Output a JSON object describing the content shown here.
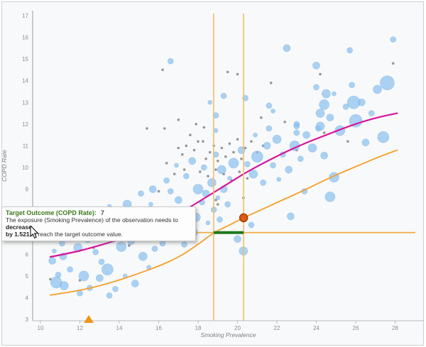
{
  "tooltip": {
    "title": "Target Outcome (COPD Rate):",
    "value": "7",
    "line2_normal": "The exposure (Smoking Prevalence) of the observation needs to ",
    "line2_bold": "decrease",
    "line3_bold": "by 1.521",
    "line3_normal": " to reach the target outcome value.",
    "title_color": "#3d7a1d"
  },
  "chart_data": {
    "type": "scatter",
    "title": "",
    "xlabel": "Smoking Prevalence",
    "ylabel": "COPD Rate",
    "x_ticks": [
      10,
      12,
      14,
      16,
      18,
      20,
      22,
      24,
      26,
      28
    ],
    "y_ticks": [
      3,
      4,
      5,
      6,
      7,
      8,
      9,
      10,
      11,
      12,
      13,
      14,
      15,
      16,
      17
    ],
    "xlim": [
      9.6,
      29.5
    ],
    "ylim": [
      2.95,
      17.3
    ],
    "grid": false,
    "legend": "none",
    "colors": {
      "bubble": "#8cc1ee",
      "bubble_edge": "#6faade",
      "gray_dot": "#8b8b8b",
      "fit_curve": "#d8159d",
      "counterfactual_curve": "#f5a02b",
      "target_line": "#f5a73b",
      "vertical_line": "#f3bd6d",
      "delta_segment": "#1e7a1e",
      "selected_fill": "#e05a12",
      "selected_stroke": "#9e3d08",
      "marker_triangle": "#f09514",
      "handle": "#e8860f",
      "axis": "#b9bdc0",
      "tick_text": "#8a8f93",
      "axis_title": "#7a7f84",
      "panel_bg": "#f8f9fa",
      "frame_border": "#cbd0d4"
    },
    "series": [
      {
        "name": "observations",
        "type": "bubble",
        "points": [
          [
            10.6,
            5.7,
            5
          ],
          [
            10.8,
            4.7,
            8
          ],
          [
            11.2,
            4.55,
            6
          ],
          [
            10.9,
            5.05,
            4
          ],
          [
            11.5,
            5.3,
            4
          ],
          [
            11.15,
            5.9,
            5
          ],
          [
            12.2,
            5.0,
            7
          ],
          [
            12.5,
            4.45,
            4
          ],
          [
            12.0,
            4.2,
            4
          ],
          [
            13.0,
            4.9,
            5
          ],
          [
            13.4,
            5.3,
            8
          ],
          [
            13.1,
            5.65,
            4
          ],
          [
            12.8,
            6.1,
            4
          ],
          [
            11.9,
            6.3,
            6
          ],
          [
            11.1,
            6.5,
            4
          ],
          [
            10.7,
            6.15,
            3
          ],
          [
            13.8,
            4.4,
            4
          ],
          [
            14.3,
            5.0,
            3
          ],
          [
            14.8,
            4.65,
            5
          ],
          [
            13.5,
            4.1,
            4
          ],
          [
            14.1,
            6.35,
            7
          ],
          [
            12.4,
            6.7,
            5
          ],
          [
            11.6,
            7.0,
            4
          ],
          [
            10.95,
            7.1,
            3
          ],
          [
            13.2,
            6.9,
            4
          ],
          [
            14.6,
            6.6,
            5
          ],
          [
            15.2,
            5.9,
            6
          ],
          [
            15.5,
            5.4,
            3
          ],
          [
            14.9,
            7.0,
            4
          ],
          [
            15.8,
            6.25,
            4
          ],
          [
            12.9,
            7.5,
            4
          ],
          [
            13.9,
            7.8,
            5
          ],
          [
            14.4,
            8.3,
            6
          ],
          [
            15.1,
            8.8,
            4
          ],
          [
            13.5,
            8.2,
            3
          ],
          [
            15.3,
            7.4,
            5
          ],
          [
            15.9,
            7.1,
            6
          ],
          [
            16.2,
            6.5,
            4
          ],
          [
            16.5,
            7.6,
            7
          ],
          [
            16.1,
            8.0,
            4
          ],
          [
            15.6,
            8.3,
            3
          ],
          [
            16.8,
            6.9,
            4
          ],
          [
            17.1,
            7.3,
            8
          ],
          [
            17.3,
            6.45,
            4
          ],
          [
            17.0,
            8.5,
            5
          ],
          [
            16.6,
            8.9,
            4
          ],
          [
            17.5,
            8.1,
            3
          ],
          [
            17.8,
            7.0,
            5
          ],
          [
            17.9,
            7.7,
            6
          ],
          [
            18.2,
            8.4,
            4
          ],
          [
            18.0,
            9.0,
            7
          ],
          [
            16.4,
            9.4,
            4
          ],
          [
            15.7,
            9.0,
            5
          ],
          [
            17.4,
            9.6,
            4
          ],
          [
            18.5,
            7.45,
            3
          ],
          [
            18.4,
            8.8,
            5
          ],
          [
            18.7,
            9.3,
            6
          ],
          [
            18.8,
            8.05,
            4
          ],
          [
            19.1,
            7.6,
            4
          ],
          [
            19.0,
            8.6,
            3
          ],
          [
            18.3,
            10.0,
            4
          ],
          [
            17.7,
            10.3,
            5
          ],
          [
            16.9,
            10.1,
            3
          ],
          [
            19.3,
            9.0,
            5
          ],
          [
            19.2,
            9.9,
            6
          ],
          [
            19.5,
            8.3,
            4
          ],
          [
            18.9,
            10.6,
            4
          ],
          [
            19.8,
            10.2,
            7
          ],
          [
            19.6,
            9.5,
            3
          ],
          [
            20.0,
            6.7,
            5
          ],
          [
            20.3,
            6.15,
            6
          ],
          [
            20.7,
            7.35,
            4
          ],
          [
            22.7,
            7.75,
            5
          ],
          [
            23.4,
            8.9,
            4
          ],
          [
            24.7,
            8.65,
            7
          ],
          [
            24.9,
            9.55,
            7
          ],
          [
            20.2,
            10.8,
            5
          ],
          [
            20.5,
            10.15,
            4
          ],
          [
            20.8,
            9.7,
            6
          ],
          [
            21.0,
            10.5,
            8
          ],
          [
            21.3,
            9.3,
            4
          ],
          [
            21.5,
            11.0,
            5
          ],
          [
            21.8,
            10.1,
            4
          ],
          [
            22.0,
            11.3,
            6
          ],
          [
            22.3,
            10.6,
            4
          ],
          [
            22.6,
            9.9,
            5
          ],
          [
            22.1,
            9.45,
            3
          ],
          [
            22.9,
            11.0,
            7
          ],
          [
            23.2,
            10.4,
            4
          ],
          [
            23.5,
            11.5,
            5
          ],
          [
            23.0,
            12.0,
            4
          ],
          [
            21.6,
            11.8,
            4
          ],
          [
            20.9,
            11.5,
            3
          ],
          [
            23.8,
            10.9,
            6
          ],
          [
            24.1,
            11.8,
            4
          ],
          [
            24.4,
            10.55,
            5
          ],
          [
            18.9,
            12.4,
            4
          ],
          [
            18.9,
            11.7,
            3
          ],
          [
            19.3,
            13.3,
            4
          ],
          [
            18.6,
            13.0,
            3
          ],
          [
            20.4,
            13.2,
            4
          ],
          [
            21.6,
            12.85,
            4
          ],
          [
            21.8,
            12.6,
            3
          ],
          [
            23.0,
            11.9,
            4
          ],
          [
            23.0,
            11.6,
            4
          ],
          [
            24.0,
            14.7,
            5
          ],
          [
            24.0,
            13.7,
            4
          ],
          [
            24.5,
            13.4,
            6
          ],
          [
            24.4,
            12.9,
            7
          ],
          [
            24.2,
            12.5,
            6
          ],
          [
            24.2,
            11.9,
            6
          ],
          [
            24.7,
            12.3,
            5
          ],
          [
            25.2,
            11.7,
            7
          ],
          [
            25.5,
            12.8,
            4
          ],
          [
            26.0,
            12.15,
            9
          ],
          [
            26.3,
            13.0,
            5
          ],
          [
            25.8,
            13.8,
            4
          ],
          [
            24.9,
            13.4,
            3
          ],
          [
            26.8,
            12.5,
            4
          ],
          [
            27.1,
            13.6,
            6
          ],
          [
            27.6,
            13.9,
            10
          ],
          [
            25.9,
            13.0,
            9
          ],
          [
            27.4,
            11.4,
            8
          ],
          [
            26.5,
            11.15,
            5
          ],
          [
            27.9,
            15.9,
            4
          ],
          [
            25.7,
            15.4,
            4
          ],
          [
            22.5,
            15.5,
            5
          ],
          [
            16.6,
            14.9,
            4
          ]
        ]
      },
      {
        "name": "comparison-points",
        "type": "dot",
        "points": [
          [
            17.0,
            10.9
          ],
          [
            17.2,
            10.6
          ],
          [
            17.4,
            11.0
          ],
          [
            17.8,
            10.8
          ],
          [
            18.0,
            11.2
          ],
          [
            18.25,
            11.2
          ],
          [
            17.6,
            11.5
          ],
          [
            18.4,
            10.4
          ],
          [
            18.6,
            10.7
          ],
          [
            18.8,
            11.0
          ],
          [
            19.0,
            10.3
          ],
          [
            19.2,
            10.9
          ],
          [
            19.4,
            10.5
          ],
          [
            19.6,
            11.1
          ],
          [
            19.8,
            10.7
          ],
          [
            20.0,
            11.3
          ],
          [
            20.2,
            10.4
          ],
          [
            20.4,
            10.9
          ],
          [
            20.7,
            11.2
          ],
          [
            21.0,
            10.7
          ],
          [
            21.3,
            11.0
          ],
          [
            18.1,
            9.8
          ],
          [
            18.5,
            9.6
          ],
          [
            18.9,
            9.9
          ],
          [
            19.3,
            9.7
          ],
          [
            19.7,
            9.4
          ],
          [
            20.1,
            9.8
          ],
          [
            20.5,
            9.5
          ],
          [
            17.3,
            9.9
          ],
          [
            16.8,
            9.7
          ],
          [
            16.4,
            10.2
          ],
          [
            16.0,
            8.9
          ],
          [
            16.3,
            11.8
          ],
          [
            17.0,
            12.2
          ],
          [
            17.9,
            12.0
          ],
          [
            18.3,
            11.85
          ],
          [
            16.2,
            14.5
          ],
          [
            19.5,
            14.4
          ],
          [
            20.0,
            14.3
          ],
          [
            24.2,
            14.3
          ],
          [
            27.9,
            14.8
          ],
          [
            21.7,
            13.9
          ],
          [
            10.5,
            4.85
          ],
          [
            12.0,
            4.8
          ],
          [
            12.7,
            6.3
          ],
          [
            14.5,
            6.4
          ],
          [
            15.0,
            7.2
          ],
          [
            14.2,
            7.9
          ],
          [
            19.0,
            8.3
          ],
          [
            20.3,
            8.6
          ],
          [
            18.9,
            8.5
          ],
          [
            23.0,
            10.8
          ],
          [
            24.4,
            11.6
          ],
          [
            25.6,
            11.2
          ],
          [
            15.4,
            11.8
          ],
          [
            21.2,
            12.3
          ],
          [
            22.4,
            12.1
          ]
        ]
      },
      {
        "name": "fitted-response-curve",
        "type": "line",
        "points": [
          [
            10.5,
            5.88
          ],
          [
            11.5,
            6.05
          ],
          [
            12.6,
            6.3
          ],
          [
            13.8,
            6.62
          ],
          [
            14.8,
            6.95
          ],
          [
            16,
            7.4
          ],
          [
            17,
            7.85
          ],
          [
            18,
            8.4
          ],
          [
            18.8,
            8.85
          ],
          [
            19.6,
            9.3
          ],
          [
            20.3,
            9.7
          ],
          [
            21.2,
            10.15
          ],
          [
            22.4,
            10.7
          ],
          [
            23.5,
            11.15
          ],
          [
            24.5,
            11.5
          ],
          [
            25.5,
            11.85
          ],
          [
            26.3,
            12.1
          ],
          [
            27.2,
            12.33
          ],
          [
            28.1,
            12.5
          ]
        ]
      },
      {
        "name": "counterfactual-curve",
        "type": "line",
        "points": [
          [
            10.5,
            4.12
          ],
          [
            11.5,
            4.25
          ],
          [
            12.6,
            4.45
          ],
          [
            13.8,
            4.75
          ],
          [
            14.8,
            5.05
          ],
          [
            16,
            5.45
          ],
          [
            17,
            5.85
          ],
          [
            18,
            6.45
          ],
          [
            18.79,
            7.0
          ],
          [
            19.6,
            7.35
          ],
          [
            20.31,
            7.68
          ],
          [
            21.2,
            8.05
          ],
          [
            22.4,
            8.55
          ],
          [
            23.5,
            9.0
          ],
          [
            24.5,
            9.45
          ],
          [
            25.5,
            9.85
          ],
          [
            26.3,
            10.15
          ],
          [
            27.2,
            10.5
          ],
          [
            28.1,
            10.8
          ]
        ]
      }
    ],
    "annotations": {
      "target_outcome_value": 7,
      "exposure_decrease": 1.521,
      "vertical_lines_x": [
        18.79,
        20.31
      ],
      "delta_segment": {
        "x1": 18.79,
        "x2": 20.31,
        "y": 7
      },
      "selected_observation": {
        "x": 20.31,
        "y": 7.68
      },
      "exposure_marker_x": 12.45
    }
  }
}
